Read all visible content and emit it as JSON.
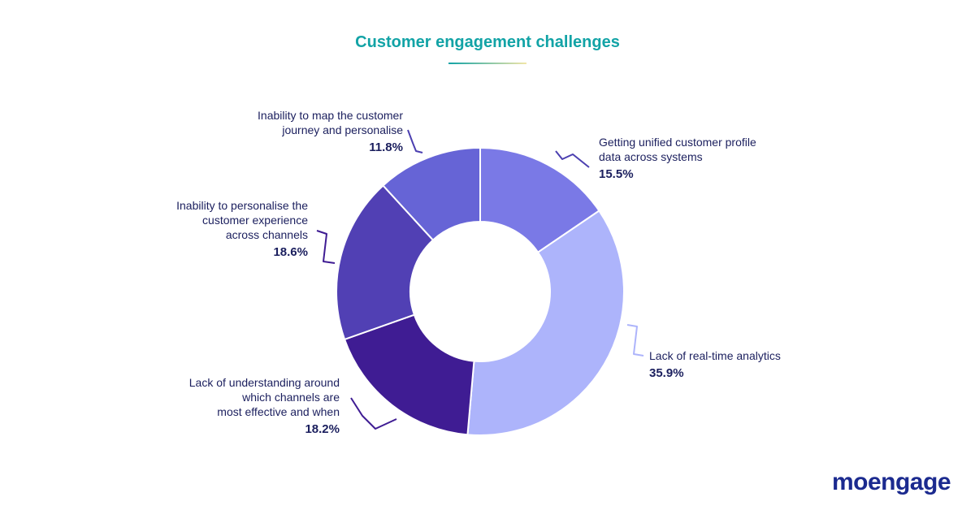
{
  "chart_data": {
    "type": "pie",
    "title": "Customer engagement challenges",
    "slices": [
      {
        "label_lines": [
          "Getting unified customer profile",
          "data across systems"
        ],
        "value": 15.5,
        "value_label": "15.5%",
        "color": "#7a79e6",
        "leader_color": "#4b3fb0"
      },
      {
        "label_lines": [
          "Lack of real-time analytics"
        ],
        "value": 35.9,
        "value_label": "35.9%",
        "color": "#adb4fb",
        "leader_color": "#adb4fb"
      },
      {
        "label_lines": [
          "Lack of understanding around",
          "which channels are",
          "most effective and when"
        ],
        "value": 18.2,
        "value_label": "18.2%",
        "color": "#3f1c93",
        "leader_color": "#3f1c93"
      },
      {
        "label_lines": [
          "Inability to personalise the",
          "customer experience",
          "across channels"
        ],
        "value": 18.6,
        "value_label": "18.6%",
        "color": "#5140b4",
        "leader_color": "#3f1c93"
      },
      {
        "label_lines": [
          "Inability to map the customer",
          "journey and personalise"
        ],
        "value": 11.8,
        "value_label": "11.8%",
        "color": "#6664d6",
        "leader_color": "#4b3fb0"
      }
    ]
  },
  "brand": {
    "logo_text": "moengage",
    "title_underline_colors": [
      "#12a3a6",
      "#f2e6a8"
    ]
  }
}
